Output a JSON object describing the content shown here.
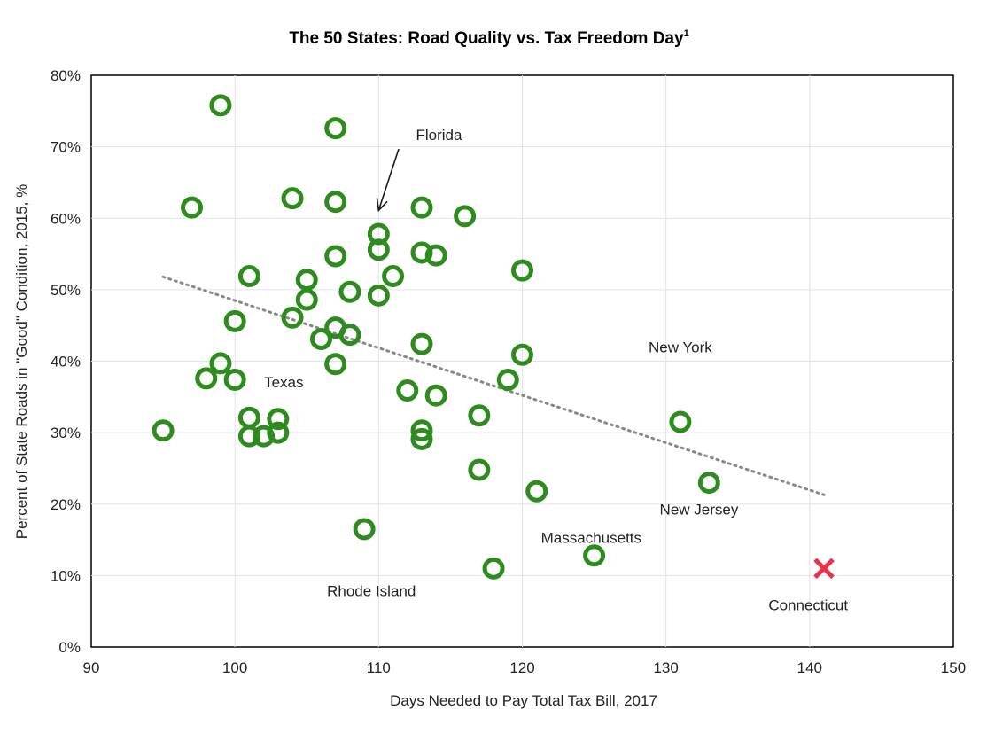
{
  "chart_data": {
    "type": "scatter",
    "title": "The 50 States: Road Quality vs. Tax Freedom Day",
    "title_superscript": "1",
    "xlabel": "Days Needed to Pay Total Tax Bill, 2017",
    "ylabel": "Percent of State Roads in \"Good\" Condition, 2015, %",
    "xlim": [
      90,
      150
    ],
    "ylim": [
      0,
      80
    ],
    "xticks": [
      90,
      100,
      110,
      120,
      130,
      140,
      150
    ],
    "yticks": [
      0,
      10,
      20,
      30,
      40,
      50,
      60,
      70,
      80
    ],
    "ytick_labels": [
      "0%",
      "10%",
      "20%",
      "30%",
      "40%",
      "50%",
      "60%",
      "70%",
      "80%"
    ],
    "grid": true,
    "series": [
      {
        "name": "States",
        "marker": "circle-open",
        "color": "#2e8b1e",
        "points": [
          {
            "x": 99,
            "y": 75.8
          },
          {
            "x": 107,
            "y": 72.6
          },
          {
            "x": 97,
            "y": 61.5
          },
          {
            "x": 104,
            "y": 62.8
          },
          {
            "x": 107,
            "y": 62.3
          },
          {
            "x": 113,
            "y": 61.5
          },
          {
            "x": 116,
            "y": 60.3
          },
          {
            "x": 110,
            "y": 57.8
          },
          {
            "x": 110,
            "y": 55.6
          },
          {
            "x": 113,
            "y": 55.2
          },
          {
            "x": 114,
            "y": 54.8
          },
          {
            "x": 107,
            "y": 54.7
          },
          {
            "x": 120,
            "y": 52.7
          },
          {
            "x": 101,
            "y": 51.9
          },
          {
            "x": 105,
            "y": 51.4
          },
          {
            "x": 111,
            "y": 51.9
          },
          {
            "x": 108,
            "y": 49.7
          },
          {
            "x": 110,
            "y": 49.2
          },
          {
            "x": 105,
            "y": 48.6
          },
          {
            "x": 104,
            "y": 46.1
          },
          {
            "x": 100,
            "y": 45.6
          },
          {
            "x": 107,
            "y": 44.7
          },
          {
            "x": 108,
            "y": 43.7
          },
          {
            "x": 106,
            "y": 43.1
          },
          {
            "x": 113,
            "y": 42.4
          },
          {
            "x": 120,
            "y": 40.9
          },
          {
            "x": 99,
            "y": 39.7
          },
          {
            "x": 107,
            "y": 39.6
          },
          {
            "x": 98,
            "y": 37.6
          },
          {
            "x": 100,
            "y": 37.4
          },
          {
            "x": 119,
            "y": 37.4
          },
          {
            "x": 112,
            "y": 35.9
          },
          {
            "x": 114,
            "y": 35.2
          },
          {
            "x": 117,
            "y": 32.4
          },
          {
            "x": 101,
            "y": 32.1
          },
          {
            "x": 103,
            "y": 31.9
          },
          {
            "x": 131,
            "y": 31.5
          },
          {
            "x": 95,
            "y": 30.3
          },
          {
            "x": 113,
            "y": 30.3
          },
          {
            "x": 101,
            "y": 29.5
          },
          {
            "x": 102,
            "y": 29.5
          },
          {
            "x": 103,
            "y": 30.0
          },
          {
            "x": 113,
            "y": 29.1
          },
          {
            "x": 117,
            "y": 24.8
          },
          {
            "x": 133,
            "y": 23.0
          },
          {
            "x": 121,
            "y": 21.8
          },
          {
            "x": 109,
            "y": 16.5
          },
          {
            "x": 125,
            "y": 12.8
          },
          {
            "x": 118,
            "y": 11.0
          }
        ]
      },
      {
        "name": "Connecticut",
        "marker": "x",
        "color": "#e8334a",
        "points": [
          {
            "x": 141,
            "y": 11.0
          }
        ]
      }
    ],
    "trendline": {
      "x": [
        95,
        141
      ],
      "y": [
        51.8,
        21.3
      ],
      "style": "dotted",
      "color": "#888888"
    },
    "annotations": [
      {
        "text": "Florida",
        "x": 114.2,
        "y": 71.7
      },
      {
        "text": "Texas",
        "x": 103.4,
        "y": 37.1
      },
      {
        "text": "New York",
        "x": 131.0,
        "y": 42.0
      },
      {
        "text": "New Jersey",
        "x": 132.3,
        "y": 19.3
      },
      {
        "text": "Massachusetts",
        "x": 124.8,
        "y": 15.3
      },
      {
        "text": "Rhode Island",
        "x": 109.5,
        "y": 7.9
      },
      {
        "text": "Connecticut",
        "x": 139.9,
        "y": 5.9
      }
    ],
    "arrow": {
      "from": [
        111.4,
        69.7
      ],
      "to": [
        110.0,
        61.1
      ]
    }
  }
}
